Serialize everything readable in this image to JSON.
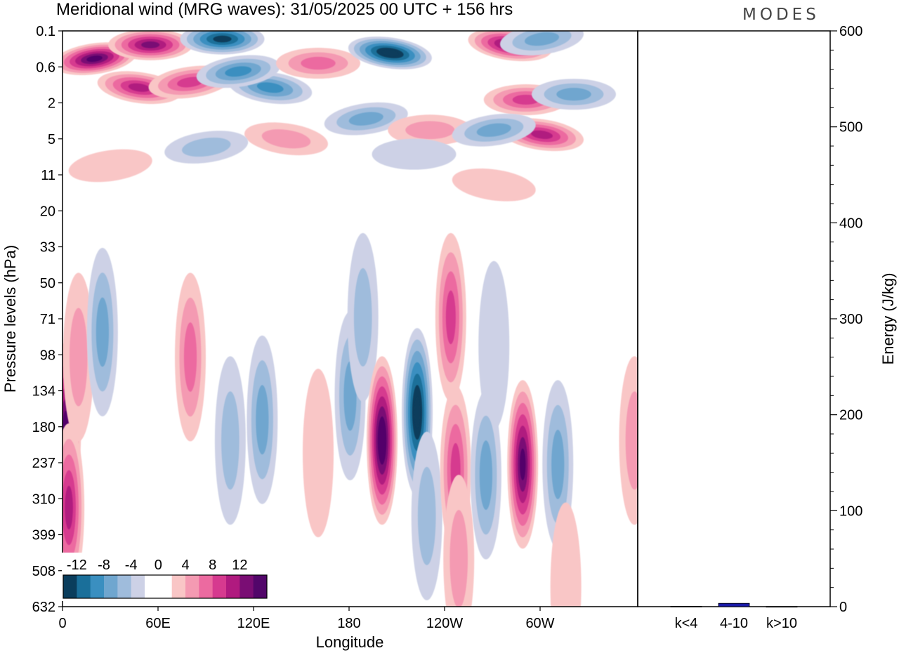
{
  "title": "Meridional wind (MRG waves):  31/05/2025  00 UTC  + 156 hrs",
  "logo_text": "MODES",
  "chart_data": [
    {
      "type": "heatmap",
      "xlabel": "Longitude",
      "ylabel": "Pressure levels (hPa)",
      "x_ticks": [
        "0",
        "60E",
        "120E",
        "180",
        "120W",
        "60W"
      ],
      "y_ticks": [
        "0.1",
        "0.6",
        "2",
        "5",
        "11",
        "20",
        "33",
        "50",
        "71",
        "98",
        "134",
        "180",
        "237",
        "310",
        "399",
        "508",
        "632"
      ],
      "colorbar": {
        "labels": [
          "-12",
          "-8",
          "-4",
          "0",
          "4",
          "8",
          "12"
        ],
        "colors": [
          "#0a3d5c",
          "#1a6f9a",
          "#3a8fc0",
          "#6fa6cf",
          "#9fbcdc",
          "#cdd1e6",
          "#ffffff",
          "#ffffff",
          "#f9c6c6",
          "#f49ab2",
          "#ec6aa0",
          "#d63a8f",
          "#b01a7f",
          "#7a0d74",
          "#52066a"
        ]
      },
      "cells": [
        {
          "lon": 20,
          "lev": 0.4,
          "v": 14
        },
        {
          "lon": 55,
          "lev": 0.2,
          "v": 13
        },
        {
          "lon": 48,
          "lev": 1.2,
          "v": 10
        },
        {
          "lon": 80,
          "lev": 1.0,
          "v": 9
        },
        {
          "lon": 100,
          "lev": 0.15,
          "v": -12
        },
        {
          "lon": 130,
          "lev": 1.2,
          "v": -9
        },
        {
          "lon": 110,
          "lev": 0.7,
          "v": -8
        },
        {
          "lon": 160,
          "lev": 0.5,
          "v": 7
        },
        {
          "lon": 205,
          "lev": 0.3,
          "v": -14
        },
        {
          "lon": 190,
          "lev": 3.0,
          "v": -6
        },
        {
          "lon": 230,
          "lev": 4.0,
          "v": 4
        },
        {
          "lon": 280,
          "lev": 0.2,
          "v": 13
        },
        {
          "lon": 300,
          "lev": 0.15,
          "v": -7
        },
        {
          "lon": 290,
          "lev": 1.8,
          "v": 8
        },
        {
          "lon": 300,
          "lev": 4.5,
          "v": 11
        },
        {
          "lon": 270,
          "lev": 4.0,
          "v": -7
        },
        {
          "lon": 320,
          "lev": 1.5,
          "v": -6
        },
        {
          "lon": 140,
          "lev": 5.0,
          "v": 5
        },
        {
          "lon": 90,
          "lev": 6.0,
          "v": -4
        },
        {
          "lon": 220,
          "lev": 7.0,
          "v": -3
        },
        {
          "lon": 270,
          "lev": 13,
          "v": 3
        },
        {
          "lon": 30,
          "lev": 9,
          "v": 3
        },
        {
          "lon": 2,
          "lev": 180,
          "v": 14
        },
        {
          "lon": 4,
          "lev": 330,
          "v": 11
        },
        {
          "lon": 10,
          "lev": 100,
          "v": 4
        },
        {
          "lon": 25,
          "lev": 80,
          "v": -6
        },
        {
          "lon": 80,
          "lev": 100,
          "v": 7
        },
        {
          "lon": 105,
          "lev": 200,
          "v": -5
        },
        {
          "lon": 125,
          "lev": 170,
          "v": -7
        },
        {
          "lon": 160,
          "lev": 220,
          "v": 3
        },
        {
          "lon": 180,
          "lev": 140,
          "v": -6
        },
        {
          "lon": 188,
          "lev": 70,
          "v": -4
        },
        {
          "lon": 200,
          "lev": 200,
          "v": 16
        },
        {
          "lon": 222,
          "lev": 160,
          "v": -15
        },
        {
          "lon": 228,
          "lev": 350,
          "v": -5
        },
        {
          "lon": 243,
          "lev": 70,
          "v": 8
        },
        {
          "lon": 246,
          "lev": 250,
          "v": 9
        },
        {
          "lon": 270,
          "lev": 90,
          "v": -3
        },
        {
          "lon": 265,
          "lev": 260,
          "v": -7
        },
        {
          "lon": 288,
          "lev": 240,
          "v": 15
        },
        {
          "lon": 310,
          "lev": 240,
          "v": -6
        },
        {
          "lon": 315,
          "lev": 560,
          "v": 3
        },
        {
          "lon": 248,
          "lev": 470,
          "v": 4
        },
        {
          "lon": 358,
          "lev": 200,
          "v": 5
        }
      ]
    },
    {
      "type": "bar",
      "categories": [
        "k<4",
        "4-10",
        "k>10"
      ],
      "values": [
        0.3,
        3.5,
        0.2
      ],
      "ylabel": "Energy (J/kg)",
      "ylim": [
        0,
        600
      ],
      "y_ticks": [
        "0",
        "100",
        "200",
        "300",
        "400",
        "500",
        "600"
      ],
      "bar_color": "#1a1aa8"
    }
  ]
}
